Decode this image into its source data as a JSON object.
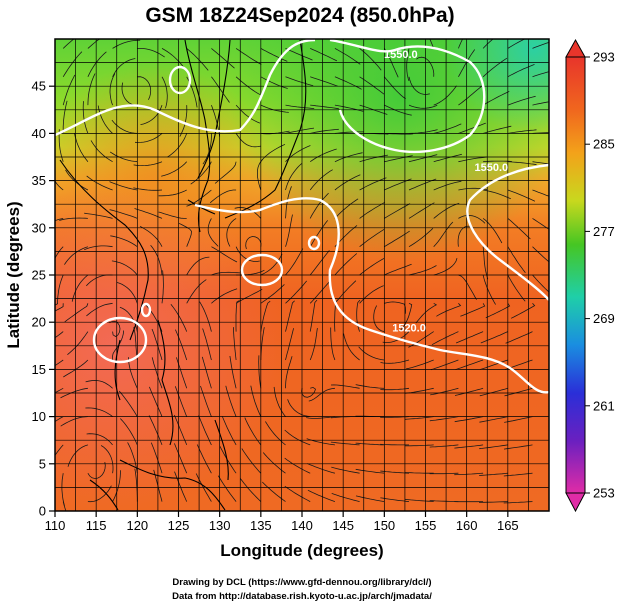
{
  "chart_data": {
    "type": "heatmap",
    "title": "GSM 18Z24Sep2024 (850.0hPa)",
    "xlabel": "Longitude (degrees)",
    "ylabel": "Latitude  (degrees)",
    "xlim": [
      110,
      170
    ],
    "ylim": [
      0,
      50
    ],
    "x_ticks": [
      "110",
      "115",
      "120",
      "125",
      "130",
      "135",
      "140",
      "145",
      "150",
      "155",
      "160",
      "165"
    ],
    "y_ticks": [
      "0",
      "5",
      "10",
      "15",
      "20",
      "25",
      "30",
      "35",
      "40",
      "45"
    ],
    "grid": true,
    "colorbar": {
      "position": "right",
      "min": 253,
      "max": 293,
      "tick_values": [
        "293",
        "285",
        "277",
        "269",
        "261",
        "253"
      ],
      "extend_arrows": "both"
    },
    "contour_labels": [
      {
        "text": "1550.0",
        "lon": 152,
        "lat": 48
      },
      {
        "text": "1550.0",
        "lon": 163,
        "lat": 36
      },
      {
        "text": "1520.0",
        "lon": 153,
        "lat": 19
      }
    ],
    "temperature_field": {
      "description_levels": "approx 850hPa temperature K",
      "lat_lon_samples": [
        {
          "lon": 112,
          "lat": 48,
          "value": 279
        },
        {
          "lon": 130,
          "lat": 48,
          "value": 276
        },
        {
          "lon": 150,
          "lat": 48,
          "value": 275
        },
        {
          "lon": 168,
          "lat": 48,
          "value": 273
        },
        {
          "lon": 120,
          "lat": 40,
          "value": 283
        },
        {
          "lon": 145,
          "lat": 40,
          "value": 280
        },
        {
          "lon": 160,
          "lat": 40,
          "value": 281
        },
        {
          "lon": 130,
          "lat": 32,
          "value": 287
        },
        {
          "lon": 150,
          "lat": 32,
          "value": 286
        },
        {
          "lon": 118,
          "lat": 20,
          "value": 290
        },
        {
          "lon": 140,
          "lat": 20,
          "value": 288
        },
        {
          "lon": 160,
          "lat": 10,
          "value": 288
        }
      ]
    },
    "wind_streamlines": true
  },
  "footer": {
    "line1": "Drawing by DCL (https://www.gfd-dennou.org/library/dcl/)",
    "line2": "Data from http://database.rish.kyoto-u.ac.jp/arch/jmadata/"
  }
}
